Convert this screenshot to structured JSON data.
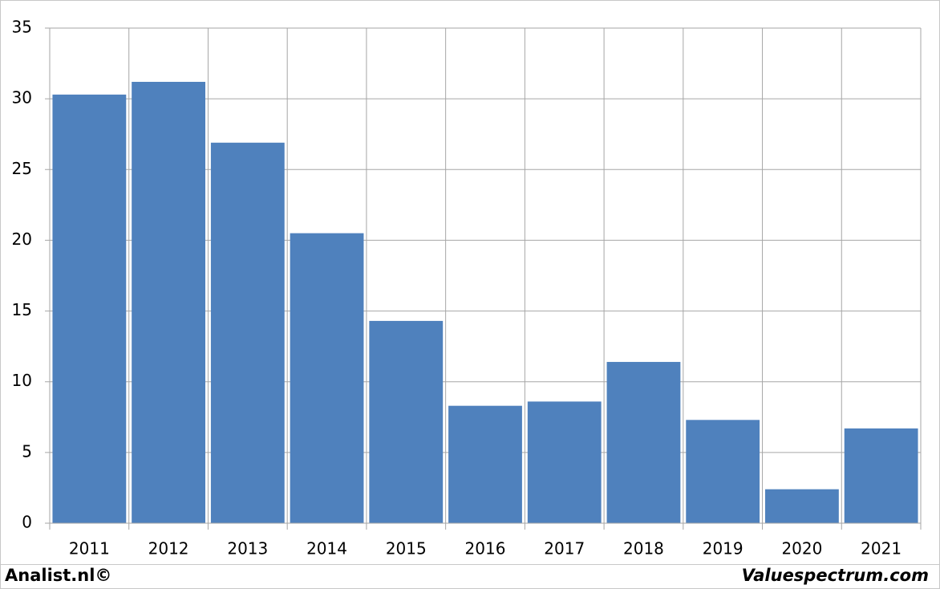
{
  "chart_data": {
    "type": "bar",
    "categories": [
      "2011",
      "2012",
      "2013",
      "2014",
      "2015",
      "2016",
      "2017",
      "2018",
      "2019",
      "2020",
      "2021"
    ],
    "values": [
      30.3,
      31.2,
      26.9,
      20.5,
      14.3,
      8.3,
      8.6,
      11.4,
      7.3,
      2.4,
      6.7
    ],
    "color": "#4f81bd",
    "ylim": [
      0,
      35
    ],
    "yticks": [
      0,
      5,
      10,
      15,
      20,
      25,
      30,
      35
    ],
    "grid": true,
    "annotations": [
      "Analist.nl©",
      "Valuespectrum.com"
    ]
  }
}
